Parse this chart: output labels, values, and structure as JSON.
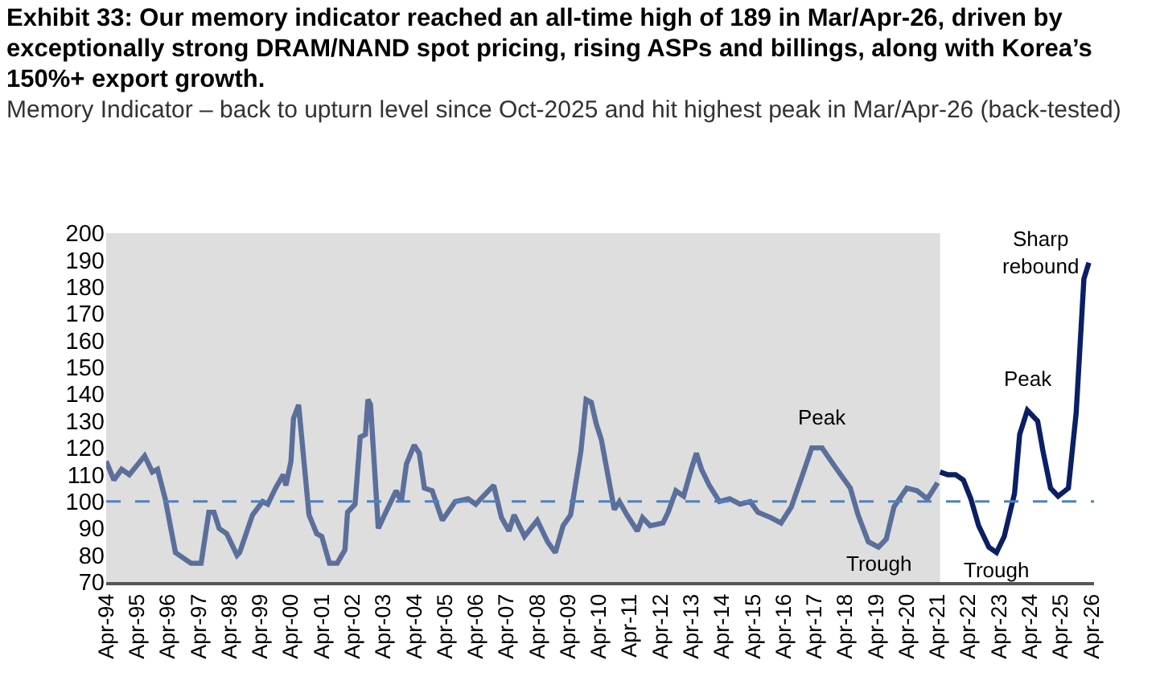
{
  "chart_data": {
    "type": "line",
    "title": "Exhibit 33: Our memory indicator reached an all-time high of 189 in Mar/Apr-26, driven by exceptionally strong DRAM/NAND spot pricing, rising ASPs and billings, along with Korea’s 150%+ export growth.",
    "subtitle": "Memory Indicator – back to upturn level since Oct-2025 and hit highest peak in Mar/Apr-26 (back-tested)",
    "series": [
      {
        "color": "#5b6f9b",
        "x": [
          "1994-04",
          "1994-07",
          "1994-10",
          "1995-01",
          "1995-07",
          "1995-10",
          "1995-12",
          "1996-03",
          "1996-07",
          "1997-01",
          "1997-05",
          "1997-08",
          "1997-10",
          "1997-12",
          "1998-03",
          "1998-07",
          "1998-08",
          "1999-01",
          "1999-05",
          "1999-07",
          "1999-10",
          "2000-01",
          "2000-02",
          "2000-04",
          "2000-05",
          "2000-07",
          "2000-11",
          "2001-02",
          "2001-04",
          "2001-07",
          "2001-10",
          "2002-01",
          "2002-02",
          "2002-05",
          "2002-07",
          "2002-09",
          "2002-10",
          "2002-11",
          "2003-02",
          "2003-05",
          "2003-09",
          "2003-11",
          "2004-01",
          "2004-04",
          "2004-06",
          "2004-08",
          "2004-11",
          "2005-03",
          "2005-08",
          "2006-01",
          "2006-04",
          "2006-07",
          "2006-11",
          "2007-02",
          "2007-05",
          "2007-07",
          "2007-11",
          "2008-04",
          "2008-08",
          "2008-11",
          "2009-02",
          "2009-05",
          "2009-09",
          "2009-11",
          "2010-01",
          "2010-03",
          "2010-05",
          "2010-10",
          "2010-12",
          "2011-03",
          "2011-07",
          "2011-09",
          "2011-12",
          "2012-05",
          "2012-07",
          "2012-10",
          "2013-01",
          "2013-04",
          "2013-06",
          "2013-08",
          "2013-11",
          "2014-03",
          "2014-07",
          "2014-11",
          "2015-03",
          "2015-06",
          "2015-11",
          "2016-03",
          "2016-07",
          "2016-11",
          "2017-03",
          "2017-07",
          "2017-12",
          "2018-06",
          "2018-09",
          "2019-01",
          "2019-05",
          "2019-08",
          "2019-11",
          "2020-04",
          "2020-08",
          "2020-12",
          "2021-04"
        ],
        "values": [
          115,
          108,
          112,
          110,
          117,
          111,
          112,
          101,
          81,
          77,
          77,
          96,
          96,
          90,
          88,
          80,
          81,
          95,
          100,
          99,
          105,
          110,
          106,
          115,
          131,
          136,
          95,
          88,
          87,
          77,
          77,
          82,
          96,
          99,
          124,
          125,
          138,
          136,
          90,
          96,
          104,
          100,
          114,
          121,
          118,
          105,
          104,
          93,
          100,
          101,
          99,
          102,
          106,
          94,
          89,
          95,
          87,
          93,
          85,
          81,
          91,
          95,
          119,
          138,
          137,
          129,
          123,
          97,
          100,
          95,
          89,
          94,
          91,
          92,
          96,
          104,
          102,
          112,
          118,
          112,
          106,
          100,
          101,
          99,
          100,
          96,
          94,
          92,
          98,
          109,
          120,
          120,
          113,
          105,
          95,
          85,
          83,
          86,
          98,
          105,
          104,
          101,
          107
        ]
      },
      {
        "color": "#0b1f65",
        "x": [
          "2021-05",
          "2021-08",
          "2021-11",
          "2022-02",
          "2022-05",
          "2022-08",
          "2022-12",
          "2023-03",
          "2023-06",
          "2023-10",
          "2023-12",
          "2024-03",
          "2024-07",
          "2024-09",
          "2024-12",
          "2025-03",
          "2025-07",
          "2025-10",
          "2026-01",
          "2026-03"
        ],
        "values": [
          111,
          110,
          110,
          108,
          101,
          91,
          83,
          81,
          87,
          103,
          125,
          134,
          130,
          119,
          105,
          102,
          105,
          133,
          183,
          189
        ]
      }
    ],
    "annotations": [
      {
        "text": "Peak",
        "x": "2017-07",
        "y": 120
      },
      {
        "text": "Trough",
        "x": "2019-05",
        "y": 83
      },
      {
        "text": "Trough",
        "x": "2023-03",
        "y": 81
      },
      {
        "text": "Peak",
        "x": "2024-03",
        "y": 134
      },
      {
        "text": "Sharp rebound",
        "x": "2026-03",
        "y": 189
      }
    ],
    "ref_lines": [
      {
        "axis": "y",
        "value": 100,
        "color": "#4f81bd",
        "line_style": "dashed"
      }
    ],
    "bands": [
      {
        "axis": "x",
        "from": "1994-04",
        "to": "2021-05",
        "color": "#dedede"
      }
    ],
    "xlim": [
      "1994-04",
      "2026-05"
    ],
    "xticks": [
      {
        "value": "1994-04",
        "label": "Apr-94"
      },
      {
        "value": "1995-04",
        "label": "Apr-95"
      },
      {
        "value": "1996-04",
        "label": "Apr-96"
      },
      {
        "value": "1997-04",
        "label": "Apr-97"
      },
      {
        "value": "1998-04",
        "label": "Apr-98"
      },
      {
        "value": "1999-04",
        "label": "Apr-99"
      },
      {
        "value": "2000-04",
        "label": "Apr-00"
      },
      {
        "value": "2001-04",
        "label": "Apr-01"
      },
      {
        "value": "2002-04",
        "label": "Apr-02"
      },
      {
        "value": "2003-04",
        "label": "Apr-03"
      },
      {
        "value": "2004-04",
        "label": "Apr-04"
      },
      {
        "value": "2005-04",
        "label": "Apr-05"
      },
      {
        "value": "2006-04",
        "label": "Apr-06"
      },
      {
        "value": "2007-04",
        "label": "Apr-07"
      },
      {
        "value": "2008-04",
        "label": "Apr-08"
      },
      {
        "value": "2009-04",
        "label": "Apr-09"
      },
      {
        "value": "2010-04",
        "label": "Apr-10"
      },
      {
        "value": "2011-04",
        "label": "Apr-11"
      },
      {
        "value": "2012-04",
        "label": "Apr-12"
      },
      {
        "value": "2013-04",
        "label": "Apr-13"
      },
      {
        "value": "2014-04",
        "label": "Apr-14"
      },
      {
        "value": "2015-04",
        "label": "Apr-15"
      },
      {
        "value": "2016-04",
        "label": "Apr-16"
      },
      {
        "value": "2017-04",
        "label": "Apr-17"
      },
      {
        "value": "2018-04",
        "label": "Apr-18"
      },
      {
        "value": "2019-04",
        "label": "Apr-19"
      },
      {
        "value": "2020-04",
        "label": "Apr-20"
      },
      {
        "value": "2021-04",
        "label": "Apr-21"
      },
      {
        "value": "2022-04",
        "label": "Apr-22"
      },
      {
        "value": "2023-04",
        "label": "Apr-23"
      },
      {
        "value": "2024-04",
        "label": "Apr-24"
      },
      {
        "value": "2025-04",
        "label": "Apr-25"
      },
      {
        "value": "2026-04",
        "label": "Apr-26"
      }
    ],
    "ylim": [
      70,
      200
    ],
    "yticks": [
      70,
      80,
      90,
      100,
      110,
      120,
      130,
      140,
      150,
      160,
      170,
      180,
      190,
      200
    ],
    "grid": false
  }
}
